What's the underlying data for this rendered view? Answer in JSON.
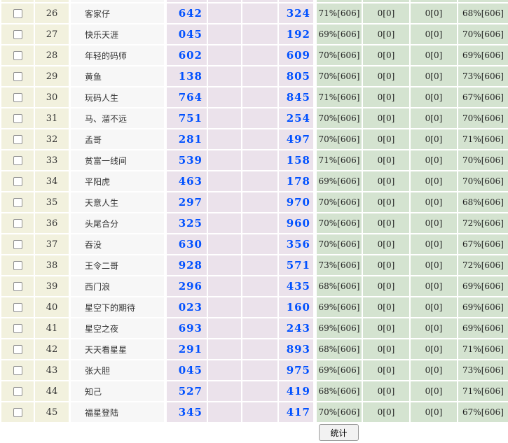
{
  "table": {
    "rows": [
      {
        "no": "26",
        "name": "客家仔",
        "pick1": "642",
        "pick2": "324",
        "stat1": "71%[606]",
        "stat2": "0[0]",
        "stat3": "0[0]",
        "stat4": "68%[606]"
      },
      {
        "no": "27",
        "name": "快乐天涯",
        "pick1": "045",
        "pick2": "192",
        "stat1": "69%[606]",
        "stat2": "0[0]",
        "stat3": "0[0]",
        "stat4": "70%[606]"
      },
      {
        "no": "28",
        "name": "年轻的码师",
        "pick1": "602",
        "pick2": "609",
        "stat1": "70%[606]",
        "stat2": "0[0]",
        "stat3": "0[0]",
        "stat4": "69%[606]"
      },
      {
        "no": "29",
        "name": "黄鱼",
        "pick1": "138",
        "pick2": "805",
        "stat1": "70%[606]",
        "stat2": "0[0]",
        "stat3": "0[0]",
        "stat4": "73%[606]"
      },
      {
        "no": "30",
        "name": "玩码人生",
        "pick1": "764",
        "pick2": "845",
        "stat1": "71%[606]",
        "stat2": "0[0]",
        "stat3": "0[0]",
        "stat4": "67%[606]"
      },
      {
        "no": "31",
        "name": "马、溜不远",
        "pick1": "751",
        "pick2": "254",
        "stat1": "70%[606]",
        "stat2": "0[0]",
        "stat3": "0[0]",
        "stat4": "70%[606]"
      },
      {
        "no": "32",
        "name": "孟哥",
        "pick1": "281",
        "pick2": "497",
        "stat1": "70%[606]",
        "stat2": "0[0]",
        "stat3": "0[0]",
        "stat4": "71%[606]"
      },
      {
        "no": "33",
        "name": "贫富一线间",
        "pick1": "539",
        "pick2": "158",
        "stat1": "71%[606]",
        "stat2": "0[0]",
        "stat3": "0[0]",
        "stat4": "70%[606]"
      },
      {
        "no": "34",
        "name": "平阳虎",
        "pick1": "463",
        "pick2": "178",
        "stat1": "69%[606]",
        "stat2": "0[0]",
        "stat3": "0[0]",
        "stat4": "70%[606]"
      },
      {
        "no": "35",
        "name": "天意人生",
        "pick1": "297",
        "pick2": "970",
        "stat1": "70%[606]",
        "stat2": "0[0]",
        "stat3": "0[0]",
        "stat4": "68%[606]"
      },
      {
        "no": "36",
        "name": "头尾合分",
        "pick1": "325",
        "pick2": "960",
        "stat1": "70%[606]",
        "stat2": "0[0]",
        "stat3": "0[0]",
        "stat4": "72%[606]"
      },
      {
        "no": "37",
        "name": "吞没",
        "pick1": "630",
        "pick2": "356",
        "stat1": "70%[606]",
        "stat2": "0[0]",
        "stat3": "0[0]",
        "stat4": "67%[606]"
      },
      {
        "no": "38",
        "name": "王令二哥",
        "pick1": "928",
        "pick2": "571",
        "stat1": "73%[606]",
        "stat2": "0[0]",
        "stat3": "0[0]",
        "stat4": "72%[606]"
      },
      {
        "no": "39",
        "name": "西门浪",
        "pick1": "296",
        "pick2": "435",
        "stat1": "68%[606]",
        "stat2": "0[0]",
        "stat3": "0[0]",
        "stat4": "69%[606]"
      },
      {
        "no": "40",
        "name": "星空下的期待",
        "pick1": "023",
        "pick2": "160",
        "stat1": "69%[606]",
        "stat2": "0[0]",
        "stat3": "0[0]",
        "stat4": "69%[606]"
      },
      {
        "no": "41",
        "name": "星空之夜",
        "pick1": "693",
        "pick2": "243",
        "stat1": "69%[606]",
        "stat2": "0[0]",
        "stat3": "0[0]",
        "stat4": "69%[606]"
      },
      {
        "no": "42",
        "name": "天天看星星",
        "pick1": "291",
        "pick2": "893",
        "stat1": "68%[606]",
        "stat2": "0[0]",
        "stat3": "0[0]",
        "stat4": "71%[606]"
      },
      {
        "no": "43",
        "name": "张大胆",
        "pick1": "045",
        "pick2": "975",
        "stat1": "69%[606]",
        "stat2": "0[0]",
        "stat3": "0[0]",
        "stat4": "73%[606]"
      },
      {
        "no": "44",
        "name": "知己",
        "pick1": "527",
        "pick2": "419",
        "stat1": "68%[606]",
        "stat2": "0[0]",
        "stat3": "0[0]",
        "stat4": "71%[606]"
      },
      {
        "no": "45",
        "name": "福星登陆",
        "pick1": "345",
        "pick2": "417",
        "stat1": "70%[606]",
        "stat2": "0[0]",
        "stat3": "0[0]",
        "stat4": "67%[606]"
      }
    ]
  },
  "footer": {
    "stats_button_label": "统计"
  },
  "colors": {
    "row_index_bg": "#f2f1de",
    "name_col_bg": "#f7f7f7",
    "pick_col_bg": "#ebe2eb",
    "stat_col_bg": "#d4e3d0",
    "pick_number_blue": "#0050ff"
  }
}
